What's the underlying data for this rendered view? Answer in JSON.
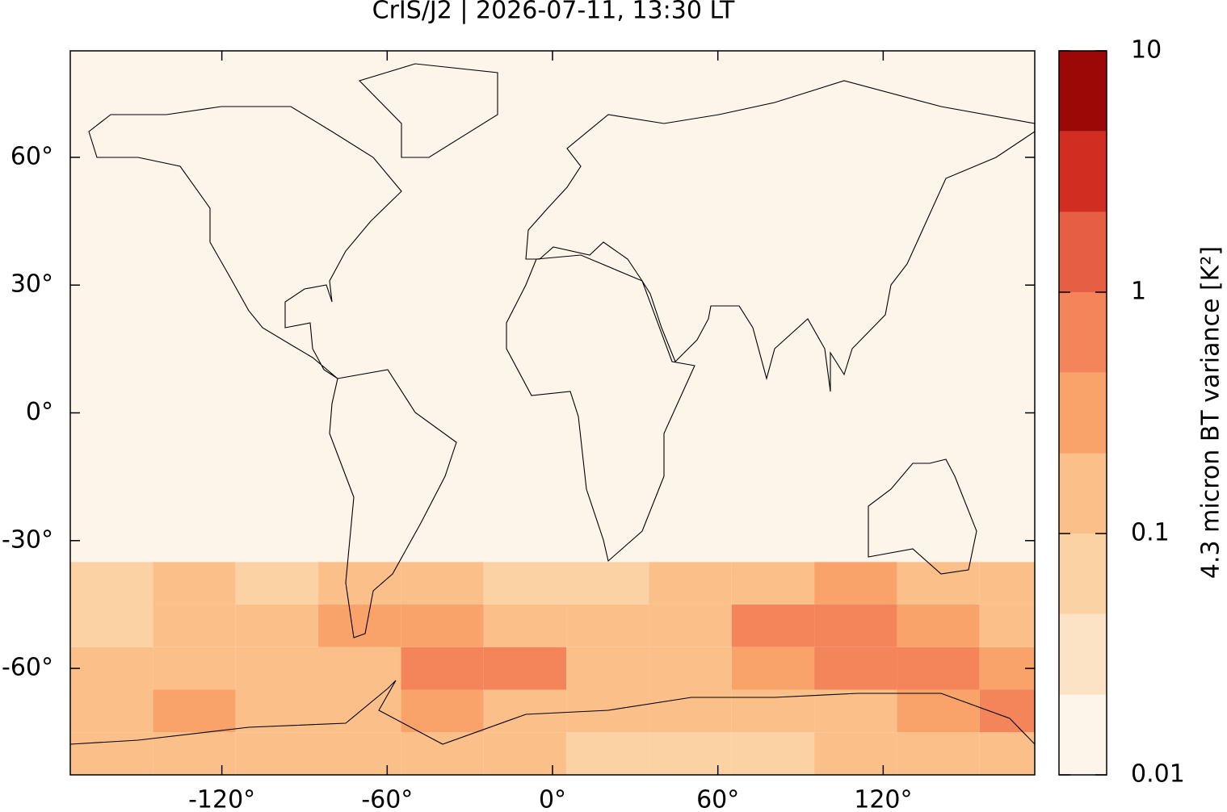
{
  "chart_data": {
    "type": "heatmap",
    "title": "CrIS/J2 | 2026-07-11, 13:30 LT",
    "xlim": [
      -175,
      175
    ],
    "ylim": [
      -85,
      85
    ],
    "xticks": [
      {
        "value": -120,
        "label": "-120°"
      },
      {
        "value": -60,
        "label": "-60°"
      },
      {
        "value": 0,
        "label": "0°"
      },
      {
        "value": 60,
        "label": "60°"
      },
      {
        "value": 120,
        "label": "120°"
      }
    ],
    "yticks": [
      {
        "value": 60,
        "label": "60°"
      },
      {
        "value": 30,
        "label": "30°"
      },
      {
        "value": 0,
        "label": "0°"
      },
      {
        "value": -30,
        "label": "-30°"
      },
      {
        "value": -60,
        "label": "-60°"
      }
    ],
    "lon_edges": [
      -175,
      -145,
      -115,
      -85,
      -55,
      -25,
      5,
      35,
      65,
      95,
      125,
      155,
      175
    ],
    "lat_edges": [
      -85,
      -75,
      -65,
      -55,
      -45,
      -35,
      85
    ],
    "z": [
      [
        0.1,
        0.15,
        0.2,
        0.1,
        0.15,
        0.1,
        0.05,
        0.05,
        0.08,
        0.1,
        0.1,
        0.15
      ],
      [
        0.15,
        0.3,
        0.2,
        0.15,
        0.4,
        0.2,
        0.1,
        0.1,
        0.2,
        0.2,
        0.3,
        0.5
      ],
      [
        0.15,
        0.2,
        0.15,
        0.2,
        0.7,
        0.5,
        0.15,
        0.2,
        0.3,
        0.8,
        0.6,
        0.3
      ],
      [
        0.08,
        0.15,
        0.1,
        0.3,
        0.4,
        0.2,
        0.1,
        0.15,
        0.5,
        0.8,
        0.4,
        0.2
      ],
      [
        0.05,
        0.1,
        0.08,
        0.15,
        0.2,
        0.08,
        0.05,
        0.1,
        0.2,
        0.3,
        0.15,
        0.1
      ],
      [
        0.015,
        0.015,
        0.015,
        0.015,
        0.015,
        0.015,
        0.015,
        0.015,
        0.015,
        0.015,
        0.015,
        0.015
      ]
    ],
    "colorbar": {
      "label": "4.3 micron BT variance [K²]",
      "log_scale": true,
      "lim": [
        0.01,
        10
      ],
      "ticks": [
        0.01,
        0.1,
        1,
        10
      ],
      "levels": [
        0.01,
        0.0215,
        0.0464,
        0.1,
        0.215,
        0.464,
        1,
        2.15,
        4.64,
        10
      ],
      "colors": [
        "#fef5ea",
        "#fce3c6",
        "#fbd2a4",
        "#fbc08a",
        "#f9a36b",
        "#f4845a",
        "#e65e44",
        "#d12d21",
        "#9c0805"
      ]
    }
  }
}
